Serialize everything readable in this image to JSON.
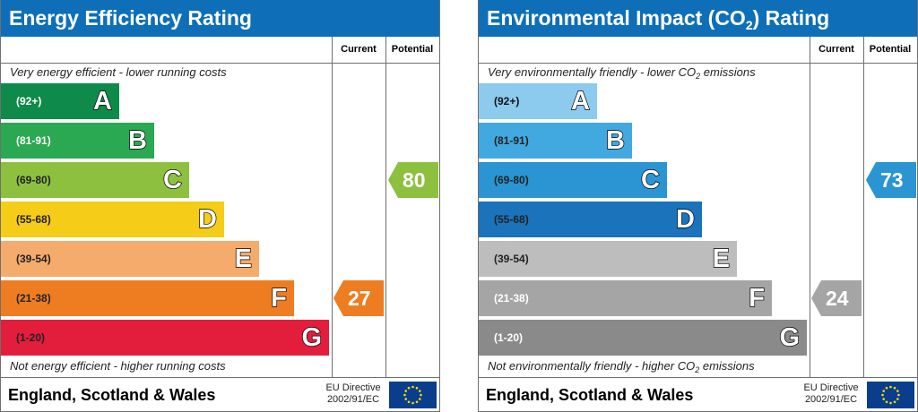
{
  "chart_data": [
    {
      "type": "table",
      "title": "Energy Efficiency Rating",
      "columns": [
        "Current",
        "Potential"
      ],
      "top_caption": "Very energy efficient - lower running costs",
      "bottom_caption": "Not energy efficient - higher running costs",
      "bands": [
        {
          "letter": "A",
          "range": "(92+)",
          "color": "#0e8a4a",
          "text_color": "#ffffff"
        },
        {
          "letter": "B",
          "range": "(81-91)",
          "color": "#2aa852",
          "text_color": "#ffffff"
        },
        {
          "letter": "C",
          "range": "(69-80)",
          "color": "#8dc03f",
          "text_color": "#222222"
        },
        {
          "letter": "D",
          "range": "(55-68)",
          "color": "#f5cc17",
          "text_color": "#222222"
        },
        {
          "letter": "E",
          "range": "(39-54)",
          "color": "#f4ab6b",
          "text_color": "#222222"
        },
        {
          "letter": "F",
          "range": "(21-38)",
          "color": "#ee7d22",
          "text_color": "#222222"
        },
        {
          "letter": "G",
          "range": "(1-20)",
          "color": "#e31d3c",
          "text_color": "#222222"
        }
      ],
      "current": {
        "value": "27",
        "band": "F",
        "color": "#ee7d22"
      },
      "potential": {
        "value": "80",
        "band": "C",
        "color": "#8dc03f"
      },
      "region": "England, Scotland & Wales",
      "directive_line1": "EU Directive",
      "directive_line2": "2002/91/EC"
    },
    {
      "type": "table",
      "title_main": "Environmental Impact (CO",
      "title_sub": "2",
      "title_end": ") Rating",
      "columns": [
        "Current",
        "Potential"
      ],
      "top_caption_main": "Very environmentally friendly - lower CO",
      "top_caption_sub": "2",
      "top_caption_end": " emissions",
      "bottom_caption_main": "Not environmentally friendly - higher CO",
      "bottom_caption_sub": "2",
      "bottom_caption_end": " emissions",
      "bands": [
        {
          "letter": "A",
          "range": "(92+)",
          "color": "#8ccbee",
          "text_color": "#111111"
        },
        {
          "letter": "B",
          "range": "(81-91)",
          "color": "#42a8e0",
          "text_color": "#222222"
        },
        {
          "letter": "C",
          "range": "(69-80)",
          "color": "#2a95d2",
          "text_color": "#222222"
        },
        {
          "letter": "D",
          "range": "(55-68)",
          "color": "#1a73bb",
          "text_color": "#222222"
        },
        {
          "letter": "E",
          "range": "(39-54)",
          "color": "#bdbdbd",
          "text_color": "#222222"
        },
        {
          "letter": "F",
          "range": "(21-38)",
          "color": "#a5a5a5",
          "text_color": "#ffffff"
        },
        {
          "letter": "G",
          "range": "(1-20)",
          "color": "#8a8a8a",
          "text_color": "#ffffff"
        }
      ],
      "current": {
        "value": "24",
        "band": "F",
        "color": "#a5a5a5"
      },
      "potential": {
        "value": "73",
        "band": "C",
        "color": "#2a95d2"
      },
      "region": "England, Scotland & Wales",
      "directive_line1": "EU Directive",
      "directive_line2": "2002/91/EC"
    }
  ]
}
